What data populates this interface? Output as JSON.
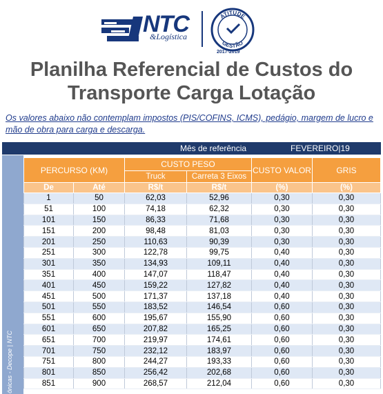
{
  "header": {
    "brand": "NTC",
    "brand_sub": "&Logística",
    "seal_top": "ATITUDE",
    "seal_bottom": "GESTÃO",
    "seal_years": "2017-2019"
  },
  "title_line1": "Planilha Referencial de Custos do",
  "title_line2": "Transporte Carga Lotação",
  "note": "Os valores abaixo não contemplam impostos (PIS/COFINS, ICMS), pedágio, margem de lucro e mão de obra para carga e descarga.",
  "reference": {
    "label": "Mês de referência",
    "month": "FEVEREIRO|19"
  },
  "sidebar_text": "ônicas - Decope | NTC",
  "table": {
    "col_percurso": "PERCURSO (KM)",
    "col_custo_peso": "CUSTO PESO",
    "col_custo_valor": "CUSTO VALOR",
    "col_gris": "GRIS",
    "sub_de": "De",
    "sub_ate": "Até",
    "sub_truck": "Truck",
    "sub_carreta": "Carreta 3 Eixos",
    "unit_truck": "R$/t",
    "unit_carreta": "R$/t",
    "unit_valor": "(%)",
    "unit_gris": "(%)",
    "rows": [
      [
        "1",
        "50",
        "62,03",
        "52,96",
        "0,30",
        "0,30"
      ],
      [
        "51",
        "100",
        "74,18",
        "62,32",
        "0,30",
        "0,30"
      ],
      [
        "101",
        "150",
        "86,33",
        "71,68",
        "0,30",
        "0,30"
      ],
      [
        "151",
        "200",
        "98,48",
        "81,03",
        "0,30",
        "0,30"
      ],
      [
        "201",
        "250",
        "110,63",
        "90,39",
        "0,30",
        "0,30"
      ],
      [
        "251",
        "300",
        "122,78",
        "99,75",
        "0,40",
        "0,30"
      ],
      [
        "301",
        "350",
        "134,93",
        "109,11",
        "0,40",
        "0,30"
      ],
      [
        "351",
        "400",
        "147,07",
        "118,47",
        "0,40",
        "0,30"
      ],
      [
        "401",
        "450",
        "159,22",
        "127,82",
        "0,40",
        "0,30"
      ],
      [
        "451",
        "500",
        "171,37",
        "137,18",
        "0,40",
        "0,30"
      ],
      [
        "501",
        "550",
        "183,52",
        "146,54",
        "0,60",
        "0,30"
      ],
      [
        "551",
        "600",
        "195,67",
        "155,90",
        "0,60",
        "0,30"
      ],
      [
        "601",
        "650",
        "207,82",
        "165,25",
        "0,60",
        "0,30"
      ],
      [
        "651",
        "700",
        "219,97",
        "174,61",
        "0,60",
        "0,30"
      ],
      [
        "701",
        "750",
        "232,12",
        "183,97",
        "0,60",
        "0,30"
      ],
      [
        "751",
        "800",
        "244,27",
        "193,33",
        "0,60",
        "0,30"
      ],
      [
        "801",
        "850",
        "256,42",
        "202,68",
        "0,60",
        "0,30"
      ],
      [
        "851",
        "900",
        "268,57",
        "212,04",
        "0,60",
        "0,30"
      ]
    ]
  },
  "colors": {
    "brand_blue": "#17377c",
    "header_orange": "#f59f3f",
    "unit_orange": "#fac48b",
    "bar_navy": "#1f3a6b",
    "row_stripe": "#dfe8f5"
  }
}
